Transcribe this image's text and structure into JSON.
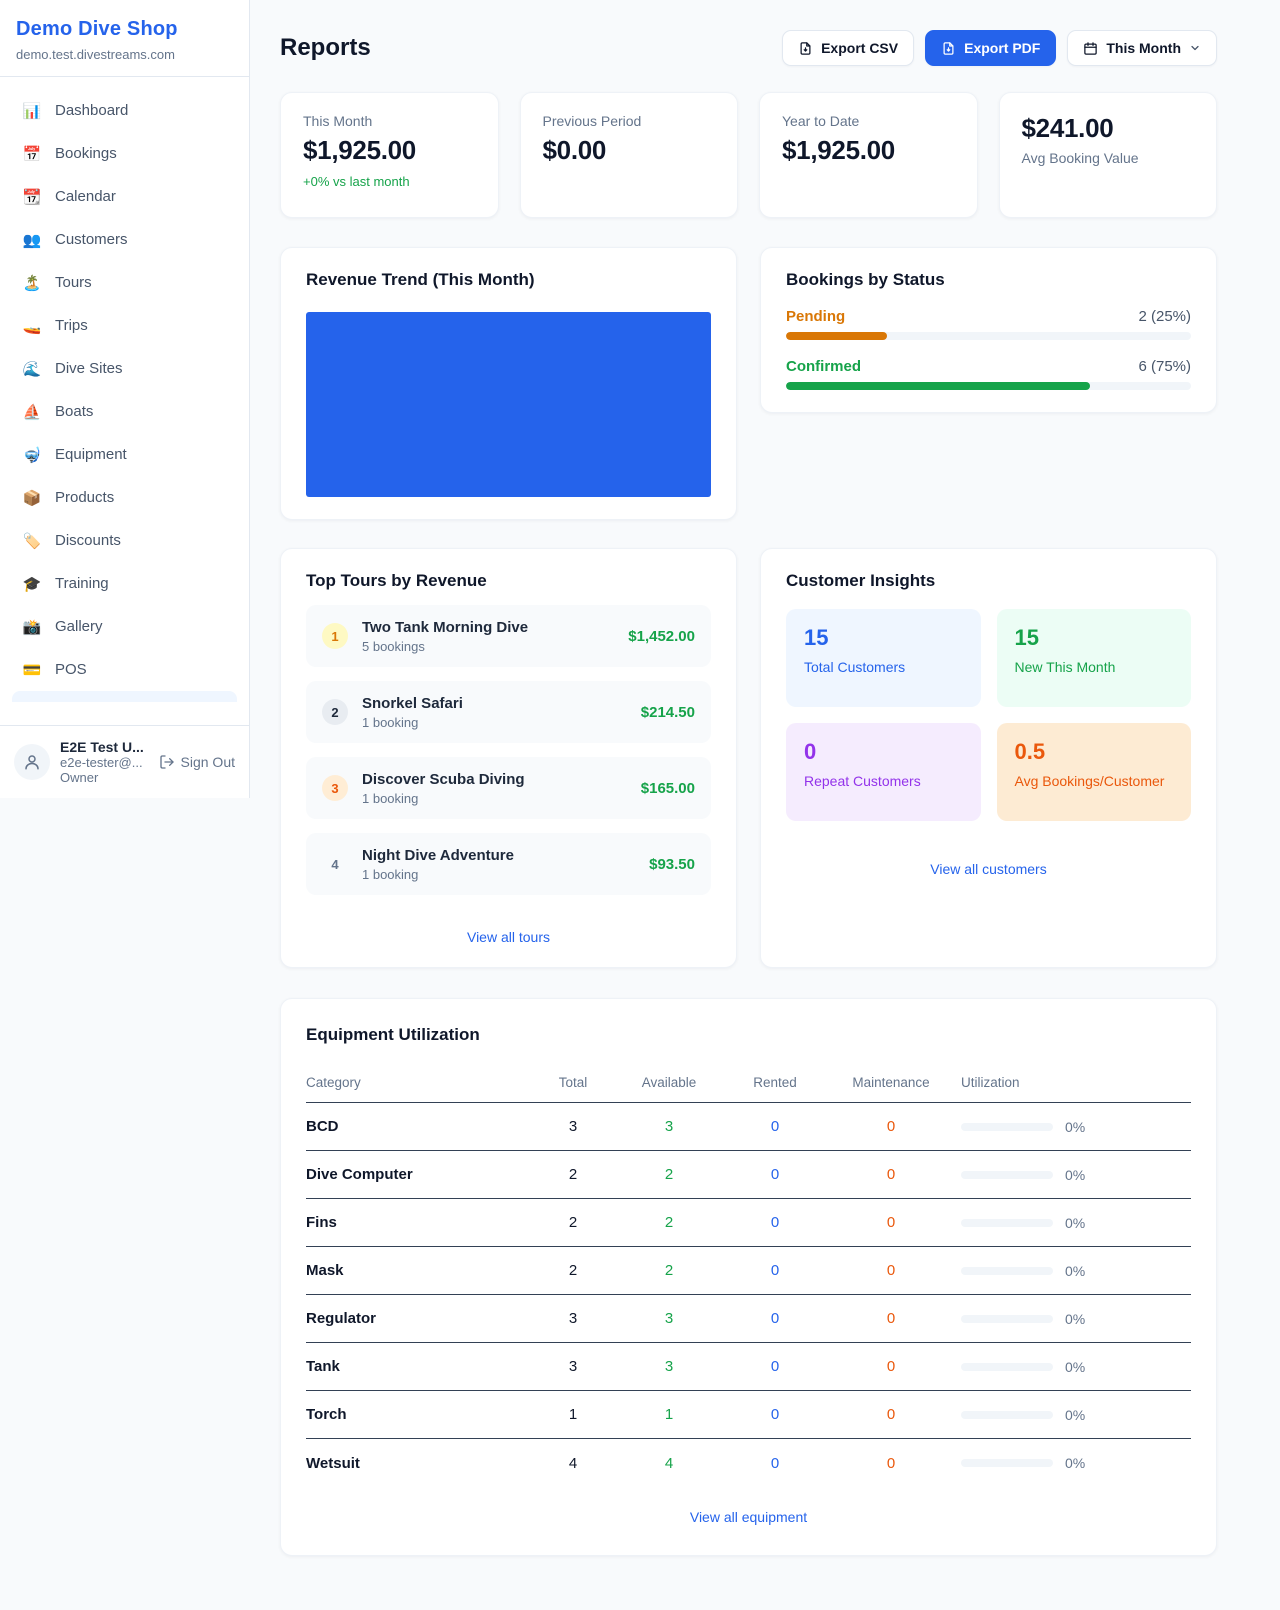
{
  "app": {
    "name": "Demo Dive Shop",
    "domain": "demo.test.divestreams.com"
  },
  "sidebar": {
    "items": [
      {
        "icon_name": "dashboard-icon",
        "glyph": "📊",
        "label": "Dashboard"
      },
      {
        "icon_name": "bookings-icon",
        "glyph": "📅",
        "label": "Bookings"
      },
      {
        "icon_name": "calendar-icon",
        "glyph": "📆",
        "label": "Calendar"
      },
      {
        "icon_name": "customers-icon",
        "glyph": "👥",
        "label": "Customers"
      },
      {
        "icon_name": "tours-icon",
        "glyph": "🏝️",
        "label": "Tours"
      },
      {
        "icon_name": "trips-icon",
        "glyph": "🚤",
        "label": "Trips"
      },
      {
        "icon_name": "dive-sites-icon",
        "glyph": "🌊",
        "label": "Dive Sites"
      },
      {
        "icon_name": "boats-icon",
        "glyph": "⛵",
        "label": "Boats"
      },
      {
        "icon_name": "equipment-icon",
        "glyph": "🤿",
        "label": "Equipment"
      },
      {
        "icon_name": "products-icon",
        "glyph": "📦",
        "label": "Products"
      },
      {
        "icon_name": "discounts-icon",
        "glyph": "🏷️",
        "label": "Discounts"
      },
      {
        "icon_name": "training-icon",
        "glyph": "🎓",
        "label": "Training"
      },
      {
        "icon_name": "gallery-icon",
        "glyph": "📸",
        "label": "Gallery"
      },
      {
        "icon_name": "pos-icon",
        "glyph": "💳",
        "label": "POS"
      }
    ],
    "user": {
      "name": "E2E Test U...",
      "email": "e2e-tester@...",
      "role": "Owner",
      "sign_out_label": "Sign Out"
    }
  },
  "header": {
    "title": "Reports",
    "export_csv_label": "Export CSV",
    "export_pdf_label": "Export PDF",
    "period_label": "This Month"
  },
  "stats": {
    "this_month": {
      "label": "This Month",
      "value": "$1,925.00",
      "delta": "+0% vs last month"
    },
    "previous_period": {
      "label": "Previous Period",
      "value": "$0.00"
    },
    "year_to_date": {
      "label": "Year to Date",
      "value": "$1,925.00"
    },
    "avg_booking": {
      "value": "$241.00",
      "label": "Avg Booking Value"
    }
  },
  "revenue_trend": {
    "title": "Revenue Trend (This Month)"
  },
  "bookings_by_status": {
    "title": "Bookings by Status",
    "items": [
      {
        "label": "Pending",
        "value": "2 (25%)",
        "percent": 25,
        "color": "#d97706"
      },
      {
        "label": "Confirmed",
        "value": "6 (75%)",
        "percent": 75,
        "color": "#16a34a"
      }
    ]
  },
  "top_tours": {
    "title": "Top Tours by Revenue",
    "items": [
      {
        "rank": "1",
        "name": "Two Tank Morning Dive",
        "bookings": "5 bookings",
        "revenue": "$1,452.00"
      },
      {
        "rank": "2",
        "name": "Snorkel Safari",
        "bookings": "1 booking",
        "revenue": "$214.50"
      },
      {
        "rank": "3",
        "name": "Discover Scuba Diving",
        "bookings": "1 booking",
        "revenue": "$165.00"
      },
      {
        "rank": "4",
        "name": "Night Dive Adventure",
        "bookings": "1 booking",
        "revenue": "$93.50"
      }
    ],
    "view_all_label": "View all tours"
  },
  "customer_insights": {
    "title": "Customer Insights",
    "tiles": [
      {
        "value": "15",
        "label": "Total Customers"
      },
      {
        "value": "15",
        "label": "New This Month"
      },
      {
        "value": "0",
        "label": "Repeat Customers"
      },
      {
        "value": "0.5",
        "label": "Avg Bookings/Customer"
      }
    ],
    "view_all_label": "View all customers"
  },
  "equipment": {
    "title": "Equipment Utilization",
    "columns": [
      "Category",
      "Total",
      "Available",
      "Rented",
      "Maintenance",
      "Utilization"
    ],
    "rows": [
      {
        "category": "BCD",
        "total": "3",
        "available": "3",
        "rented": "0",
        "maintenance": "0",
        "utilization": "0%"
      },
      {
        "category": "Dive Computer",
        "total": "2",
        "available": "2",
        "rented": "0",
        "maintenance": "0",
        "utilization": "0%"
      },
      {
        "category": "Fins",
        "total": "2",
        "available": "2",
        "rented": "0",
        "maintenance": "0",
        "utilization": "0%"
      },
      {
        "category": "Mask",
        "total": "2",
        "available": "2",
        "rented": "0",
        "maintenance": "0",
        "utilization": "0%"
      },
      {
        "category": "Regulator",
        "total": "3",
        "available": "3",
        "rented": "0",
        "maintenance": "0",
        "utilization": "0%"
      },
      {
        "category": "Tank",
        "total": "3",
        "available": "3",
        "rented": "0",
        "maintenance": "0",
        "utilization": "0%"
      },
      {
        "category": "Torch",
        "total": "1",
        "available": "1",
        "rented": "0",
        "maintenance": "0",
        "utilization": "0%"
      },
      {
        "category": "Wetsuit",
        "total": "4",
        "available": "4",
        "rented": "0",
        "maintenance": "0",
        "utilization": "0%"
      }
    ],
    "view_all_label": "View all equipment"
  },
  "chart_data": [
    {
      "type": "bar",
      "title": "Revenue Trend (This Month)",
      "categories": [
        "This Month"
      ],
      "values": [
        1925
      ],
      "xlabel": "",
      "ylabel": "",
      "note": "single full-width solid bar, no axes or gridlines",
      "bar_color": "#2563eb"
    },
    {
      "type": "bar",
      "title": "Bookings by Status",
      "categories": [
        "Pending",
        "Confirmed"
      ],
      "values": [
        2,
        6
      ],
      "percents": [
        25,
        75
      ],
      "colors": [
        "#d97706",
        "#16a34a"
      ],
      "layout": "horizontal progress bars with right-aligned count labels"
    }
  ],
  "colors": {
    "accent_blue": "#2563eb",
    "green": "#16a34a",
    "orange_pending": "#d97706",
    "orange_deep": "#ea580c",
    "purple": "#9333ea",
    "page_bg": "#f8fafc",
    "muted_text": "#64748b"
  }
}
